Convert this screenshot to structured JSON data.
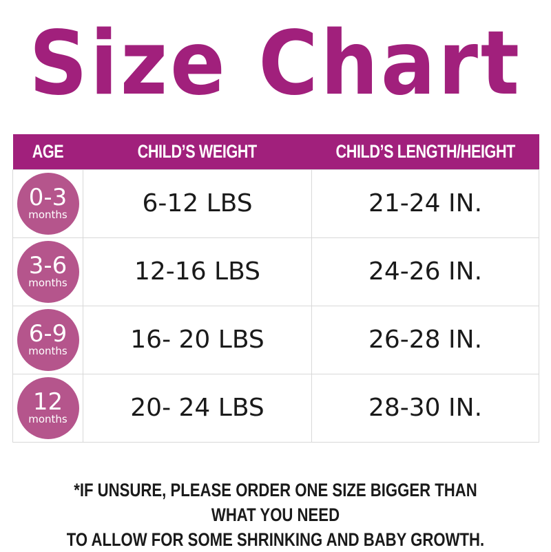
{
  "title": "Size Chart",
  "colors": {
    "accent": "#a1207c",
    "circle": "#b5558c"
  },
  "headers": [
    "AGE",
    "CHILD’S WEIGHT",
    "CHILD’S LENGTH/HEIGHT"
  ],
  "rows": [
    {
      "age": "0-3",
      "unit": "months",
      "weight": "6-12 LBS",
      "length": "21-24 IN."
    },
    {
      "age": "3-6",
      "unit": "months",
      "weight": "12-16 LBS",
      "length": "24-26 IN."
    },
    {
      "age": "6-9",
      "unit": "months",
      "weight": "16- 20 LBS",
      "length": "26-28 IN."
    },
    {
      "age": "12",
      "unit": "months",
      "weight": "20- 24 LBS",
      "length": "28-30 IN."
    }
  ],
  "note": [
    "*IF UNSURE, PLEASE ORDER ONE SIZE BIGGER THAN WHAT YOU NEED",
    "TO ALLOW FOR SOME SHRINKING AND BABY GROWTH."
  ]
}
